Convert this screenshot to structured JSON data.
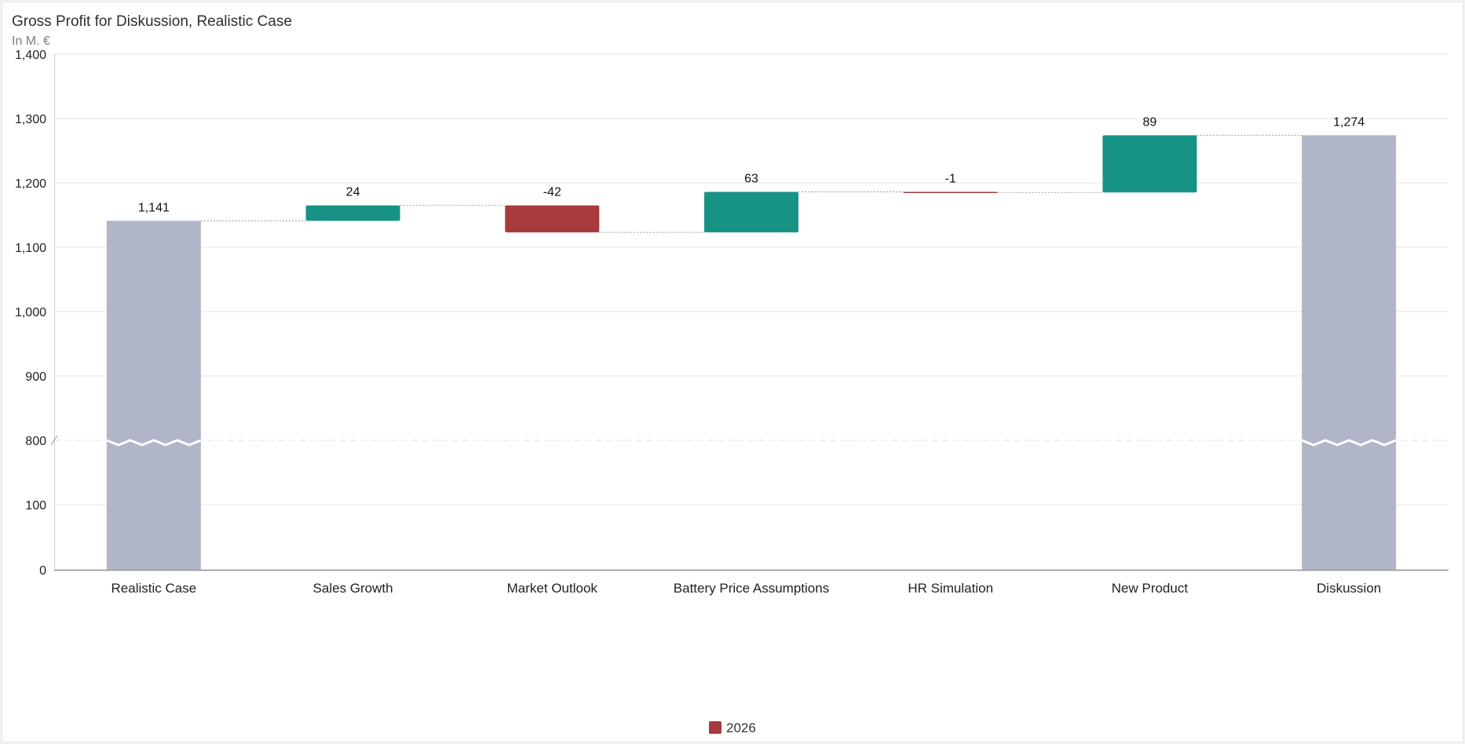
{
  "header": {
    "title": "Gross Profit for Diskussion, Realistic Case",
    "subtitle": "In M. €"
  },
  "chart_data": {
    "type": "bar",
    "subtype": "waterfall",
    "title": "Gross Profit for Diskussion, Realistic Case",
    "subtitle": "In M. €",
    "categories": [
      "Realistic Case",
      "Sales Growth",
      "Market Outlook",
      "Battery Price Assumptions",
      "HR Simulation",
      "New Product",
      "Diskussion"
    ],
    "values": [
      1141,
      24,
      -42,
      63,
      -1,
      89,
      1274
    ],
    "labels": [
      "1,141",
      "24",
      "-42",
      "63",
      "-1",
      "89",
      "1,274"
    ],
    "kinds": [
      "total",
      "delta",
      "delta",
      "delta",
      "delta",
      "delta",
      "total"
    ],
    "y_ticks": [
      0,
      100,
      800,
      900,
      1000,
      1100,
      1200,
      1300,
      1400
    ],
    "y_tick_labels": [
      "0",
      "100",
      "800",
      "900",
      "1,000",
      "1,100",
      "1,200",
      "1,300",
      "1,400"
    ],
    "axis_break": [
      100,
      800
    ],
    "ylim": [
      0,
      1400
    ],
    "grid": true,
    "legend": {
      "position": "bottom",
      "entries": [
        {
          "name": "2026",
          "color": "#a63a3c"
        }
      ]
    },
    "colors": {
      "total": "#b0b5c8",
      "increase": "#169384",
      "decrease": "#a63a3c",
      "connector": "#9a9a9a"
    }
  }
}
